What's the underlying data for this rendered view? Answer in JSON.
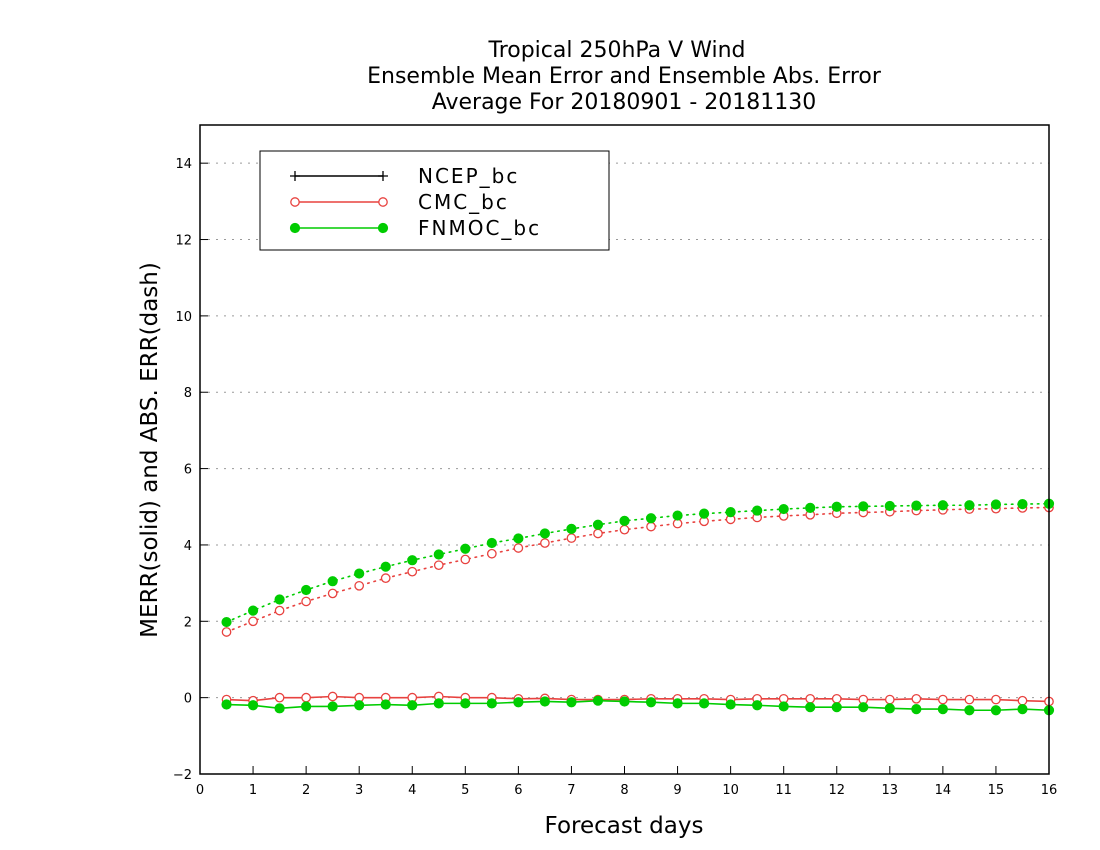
{
  "chart_data": {
    "type": "line",
    "title": [
      "Tropical 250hPa V Wind",
      "Ensemble Mean Error and Ensemble Abs. Error",
      "Average For 20180901 - 20181130"
    ],
    "xlabel": "Forecast days",
    "ylabel": "MERR(solid) and ABS. ERR(dash)",
    "xlim": [
      0,
      16
    ],
    "ylim": [
      -2,
      15
    ],
    "xticks": [
      0,
      1,
      2,
      3,
      4,
      5,
      6,
      7,
      8,
      9,
      10,
      11,
      12,
      13,
      14,
      15,
      16
    ],
    "yticks": [
      -2,
      0,
      2,
      4,
      6,
      8,
      10,
      12,
      14
    ],
    "grid": true,
    "legend_position": "top-left",
    "x": [
      0.5,
      1,
      1.5,
      2,
      2.5,
      3,
      3.5,
      4,
      4.5,
      5,
      5.5,
      6,
      6.5,
      7,
      7.5,
      8,
      8.5,
      9,
      9.5,
      10,
      10.5,
      11,
      11.5,
      12,
      12.5,
      13,
      13.5,
      14,
      14.5,
      15,
      15.5,
      16
    ],
    "series": [
      {
        "name": "NCEP_bc",
        "color": "#000000",
        "marker": "plus",
        "merr": [],
        "abserr": []
      },
      {
        "name": "CMC_bc",
        "color": "#e8423f",
        "marker": "open-circle",
        "merr": [
          -0.05,
          -0.08,
          0.0,
          0.0,
          0.03,
          0.0,
          0.0,
          0.0,
          0.03,
          0.0,
          0.0,
          -0.03,
          -0.02,
          -0.05,
          -0.05,
          -0.05,
          -0.03,
          -0.03,
          -0.03,
          -0.05,
          -0.03,
          -0.03,
          -0.03,
          -0.03,
          -0.05,
          -0.05,
          -0.03,
          -0.05,
          -0.05,
          -0.05,
          -0.08,
          -0.1
        ],
        "abserr": [
          1.72,
          2.0,
          2.28,
          2.52,
          2.73,
          2.93,
          3.13,
          3.3,
          3.47,
          3.62,
          3.77,
          3.92,
          4.05,
          4.18,
          4.3,
          4.4,
          4.48,
          4.56,
          4.62,
          4.67,
          4.72,
          4.76,
          4.79,
          4.83,
          4.85,
          4.87,
          4.9,
          4.92,
          4.94,
          4.95,
          4.97,
          4.98
        ]
      },
      {
        "name": "FNMOC_bc",
        "color": "#00cc00",
        "marker": "filled-circle",
        "merr": [
          -0.18,
          -0.2,
          -0.28,
          -0.23,
          -0.23,
          -0.2,
          -0.18,
          -0.2,
          -0.15,
          -0.15,
          -0.15,
          -0.12,
          -0.1,
          -0.12,
          -0.08,
          -0.1,
          -0.12,
          -0.15,
          -0.15,
          -0.18,
          -0.2,
          -0.23,
          -0.25,
          -0.25,
          -0.25,
          -0.28,
          -0.3,
          -0.3,
          -0.33,
          -0.33,
          -0.3,
          -0.33
        ],
        "abserr": [
          1.98,
          2.28,
          2.57,
          2.82,
          3.05,
          3.25,
          3.43,
          3.6,
          3.75,
          3.9,
          4.05,
          4.17,
          4.3,
          4.42,
          4.53,
          4.63,
          4.7,
          4.77,
          4.82,
          4.86,
          4.9,
          4.94,
          4.97,
          5.0,
          5.01,
          5.02,
          5.03,
          5.04,
          5.04,
          5.06,
          5.07,
          5.08
        ]
      }
    ]
  }
}
